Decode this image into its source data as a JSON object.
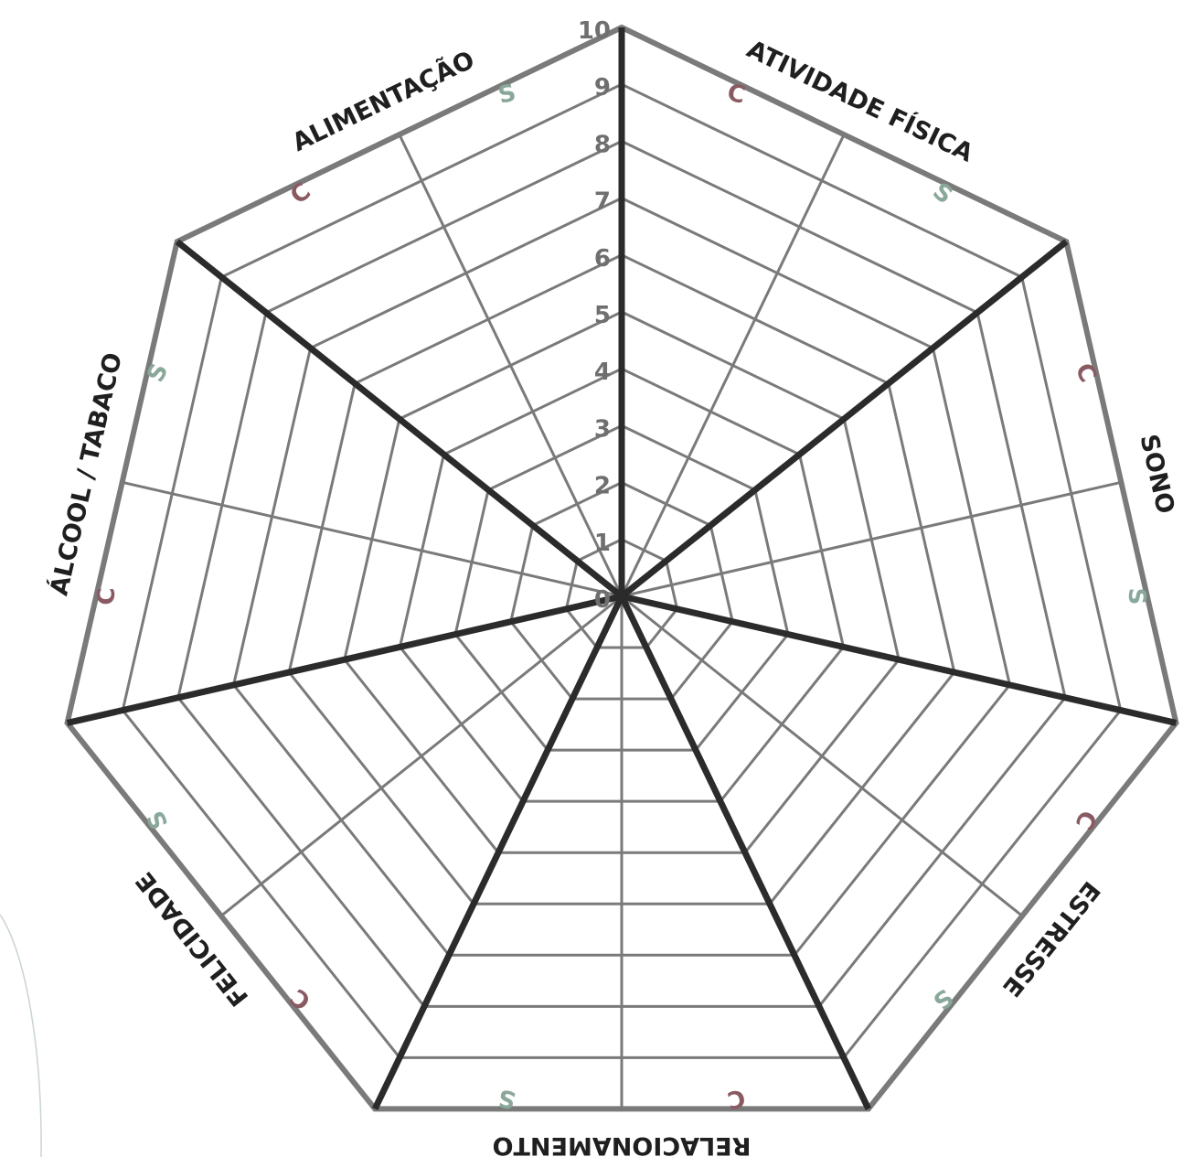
{
  "title": "",
  "categories": [
    {
      "label": "ATIVIDADE FÍSICA",
      "first": "C",
      "second": "S"
    },
    {
      "label": "SONO",
      "first": "C",
      "second": "S"
    },
    {
      "label": "ESTRESSE",
      "first": "C",
      "second": "S"
    },
    {
      "label": "RELACIONAMENTO",
      "first": "C",
      "second": "S"
    },
    {
      "label": "FELICIDADE",
      "first": "C",
      "second": "S"
    },
    {
      "label": "ÁLCOOL / TABACO",
      "first": "C",
      "second": "S"
    },
    {
      "label": "ALIMENTAÇÃO",
      "first": "C",
      "second": "S"
    }
  ],
  "scale": [
    "0",
    "1",
    "2",
    "3",
    "4",
    "5",
    "6",
    "7",
    "8",
    "9",
    "10"
  ],
  "colors": {
    "c_letter": "#8a5a63",
    "s_letter": "#8aa89a",
    "grid": "#7a7a7a",
    "axis": "#2b2b2b",
    "label": "#1f1f1f"
  }
}
